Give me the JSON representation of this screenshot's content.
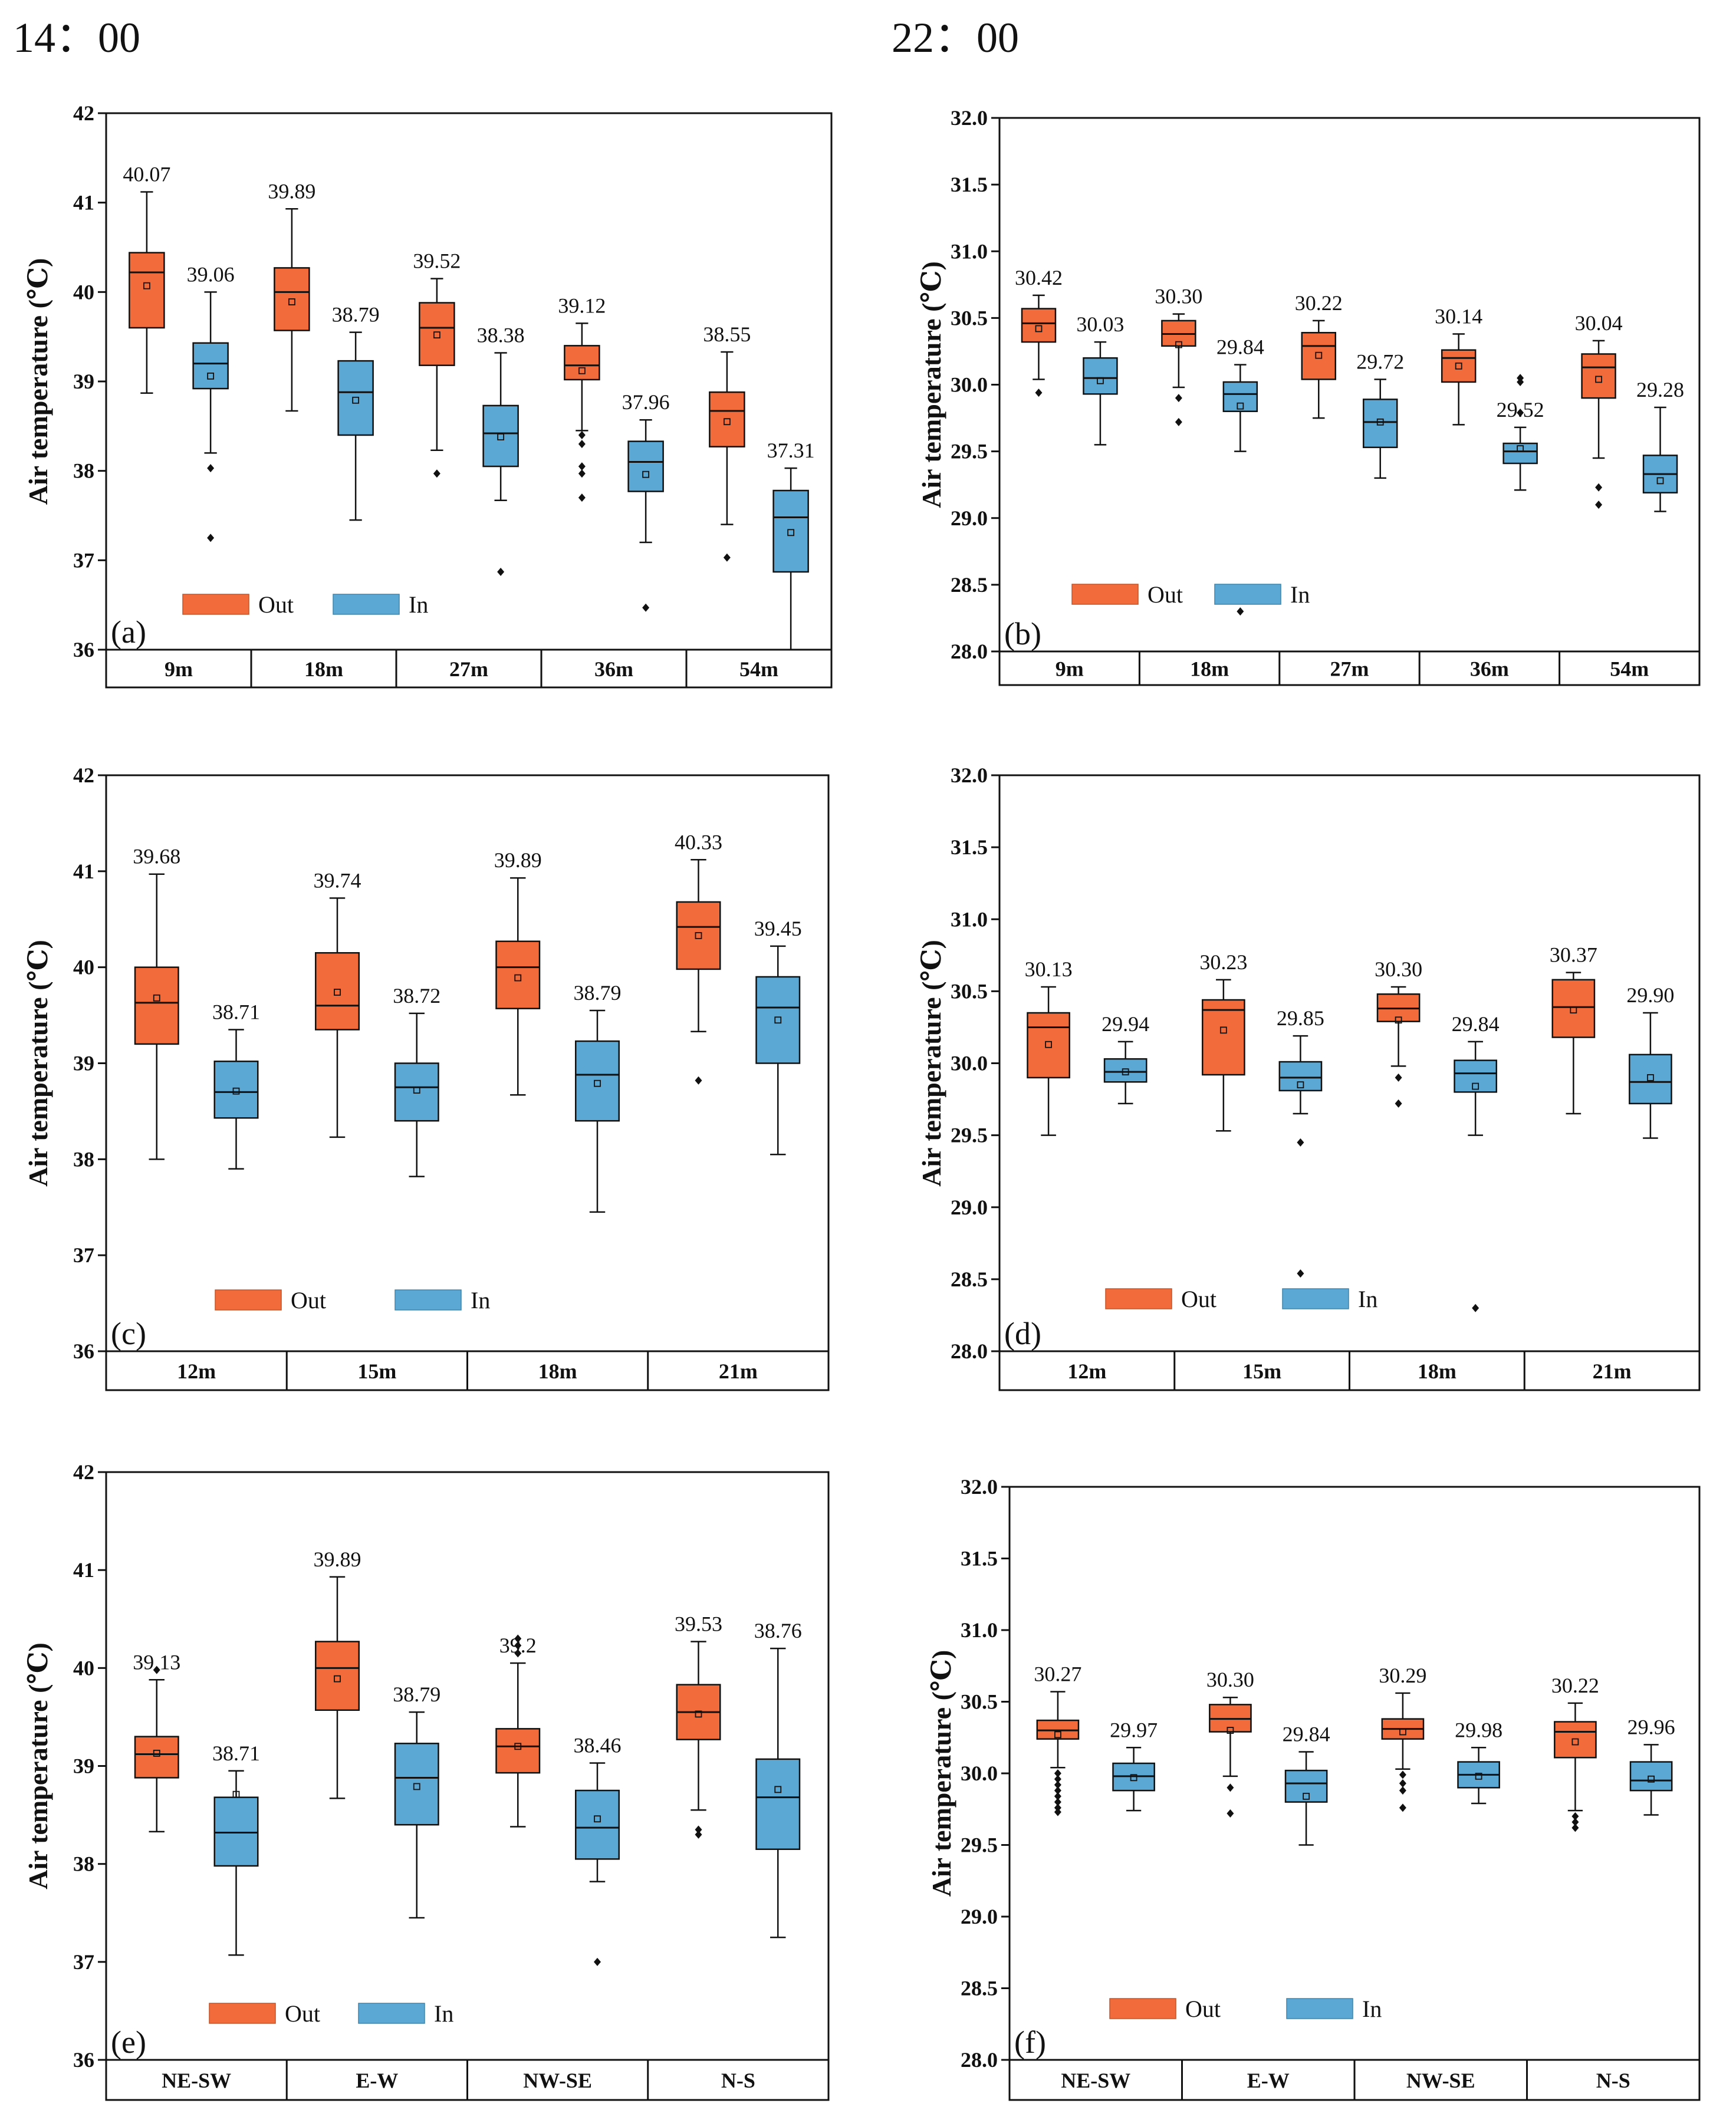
{
  "headers": {
    "left": "14：00",
    "right": "22：00"
  },
  "legend": {
    "out": "Out",
    "in": "In"
  },
  "colors": {
    "out": "#f26b3a",
    "in": "#5ba8d4",
    "axis": "#111111"
  },
  "chart_data": [
    {
      "panel": "(a)",
      "type": "box",
      "ylabel": "Air temperature (℃)",
      "ylim": [
        36,
        42
      ],
      "yticks": [
        "36",
        "37",
        "38",
        "39",
        "40",
        "41",
        "42"
      ],
      "categories": [
        "9m",
        "18m",
        "27m",
        "36m",
        "54m"
      ],
      "series": [
        {
          "name": "Out",
          "boxes": [
            {
              "mean": 40.07,
              "label": "40.07",
              "q1": 39.6,
              "median": 40.22,
              "q3": 40.44,
              "wl": 38.87,
              "wh": 41.12,
              "outliers": []
            },
            {
              "mean": 39.89,
              "label": "39.89",
              "q1": 39.57,
              "median": 40.0,
              "q3": 40.27,
              "wl": 38.67,
              "wh": 40.93,
              "outliers": []
            },
            {
              "mean": 39.52,
              "label": "39.52",
              "q1": 39.18,
              "median": 39.6,
              "q3": 39.88,
              "wl": 38.23,
              "wh": 40.15,
              "outliers": [
                37.97
              ]
            },
            {
              "mean": 39.12,
              "label": "39.12",
              "q1": 39.02,
              "median": 39.18,
              "q3": 39.4,
              "wl": 38.45,
              "wh": 39.65,
              "outliers": [
                38.4,
                38.3,
                38.05,
                37.97,
                37.7
              ]
            },
            {
              "mean": 38.55,
              "label": "38.55",
              "q1": 38.27,
              "median": 38.67,
              "q3": 38.88,
              "wl": 37.4,
              "wh": 39.33,
              "outliers": [
                37.03
              ]
            }
          ]
        },
        {
          "name": "In",
          "boxes": [
            {
              "mean": 39.06,
              "label": "39.06",
              "q1": 38.92,
              "median": 39.2,
              "q3": 39.43,
              "wl": 38.2,
              "wh": 40.0,
              "outliers": [
                38.03,
                37.25
              ]
            },
            {
              "mean": 38.79,
              "label": "38.79",
              "q1": 38.4,
              "median": 38.88,
              "q3": 39.23,
              "wl": 37.45,
              "wh": 39.55,
              "outliers": []
            },
            {
              "mean": 38.38,
              "label": "38.38",
              "q1": 38.05,
              "median": 38.42,
              "q3": 38.73,
              "wl": 37.67,
              "wh": 39.32,
              "outliers": [
                36.87
              ]
            },
            {
              "mean": 37.96,
              "label": "37.96",
              "q1": 37.77,
              "median": 38.1,
              "q3": 38.33,
              "wl": 37.2,
              "wh": 38.57,
              "outliers": [
                36.47
              ]
            },
            {
              "mean": 37.31,
              "label": "37.31",
              "q1": 36.87,
              "median": 37.48,
              "q3": 37.78,
              "wl": 36.0,
              "wh": 38.03,
              "outliers": []
            }
          ]
        }
      ]
    },
    {
      "panel": "(b)",
      "type": "box",
      "ylabel": "Air temperature (℃)",
      "ylim": [
        28,
        32
      ],
      "yticks": [
        "28.0",
        "28.5",
        "29.0",
        "29.5",
        "30.0",
        "30.5",
        "31.0",
        "31.5",
        "32.0"
      ],
      "categories": [
        "9m",
        "18m",
        "27m",
        "36m",
        "54m"
      ],
      "series": [
        {
          "name": "Out",
          "boxes": [
            {
              "mean": 30.42,
              "label": "30.42",
              "q1": 30.32,
              "median": 30.46,
              "q3": 30.57,
              "wl": 30.04,
              "wh": 30.67,
              "outliers": [
                29.94
              ]
            },
            {
              "mean": 30.3,
              "label": "30.30",
              "q1": 30.29,
              "median": 30.38,
              "q3": 30.48,
              "wl": 29.98,
              "wh": 30.53,
              "outliers": [
                29.9,
                29.72
              ]
            },
            {
              "mean": 30.22,
              "label": "30.22",
              "q1": 30.04,
              "median": 30.29,
              "q3": 30.39,
              "wl": 29.75,
              "wh": 30.48,
              "outliers": []
            },
            {
              "mean": 30.14,
              "label": "30.14",
              "q1": 30.02,
              "median": 30.2,
              "q3": 30.26,
              "wl": 29.7,
              "wh": 30.38,
              "outliers": []
            },
            {
              "mean": 30.04,
              "label": "30.04",
              "q1": 29.9,
              "median": 30.13,
              "q3": 30.23,
              "wl": 29.45,
              "wh": 30.33,
              "outliers": [
                29.23,
                29.1
              ]
            }
          ]
        },
        {
          "name": "In",
          "boxes": [
            {
              "mean": 30.03,
              "label": "30.03",
              "q1": 29.93,
              "median": 30.05,
              "q3": 30.2,
              "wl": 29.55,
              "wh": 30.32,
              "outliers": []
            },
            {
              "mean": 29.84,
              "label": "29.84",
              "q1": 29.8,
              "median": 29.93,
              "q3": 30.02,
              "wl": 29.5,
              "wh": 30.15,
              "outliers": [
                28.3
              ]
            },
            {
              "mean": 29.72,
              "label": "29.72",
              "q1": 29.53,
              "median": 29.72,
              "q3": 29.89,
              "wl": 29.3,
              "wh": 30.04,
              "outliers": []
            },
            {
              "mean": 29.52,
              "label": "29.52",
              "q1": 29.41,
              "median": 29.5,
              "q3": 29.56,
              "wl": 29.21,
              "wh": 29.68,
              "outliers": [
                30.05,
                30.02,
                29.79
              ]
            },
            {
              "mean": 29.28,
              "label": "29.28",
              "q1": 29.19,
              "median": 29.33,
              "q3": 29.47,
              "wl": 29.05,
              "wh": 29.83,
              "outliers": []
            }
          ]
        }
      ]
    },
    {
      "panel": "(c)",
      "type": "box",
      "ylabel": "Air temperature  (℃)",
      "ylim": [
        36,
        42
      ],
      "yticks": [
        "36",
        "37",
        "38",
        "39",
        "40",
        "41",
        "42"
      ],
      "categories": [
        "12m",
        "15m",
        "18m",
        "21m"
      ],
      "series": [
        {
          "name": "Out",
          "boxes": [
            {
              "mean": 39.68,
              "label": "39.68",
              "q1": 39.2,
              "median": 39.63,
              "q3": 40.0,
              "wl": 38.0,
              "wh": 40.97,
              "outliers": []
            },
            {
              "mean": 39.74,
              "label": "39.74",
              "q1": 39.35,
              "median": 39.6,
              "q3": 40.15,
              "wl": 38.23,
              "wh": 40.72,
              "outliers": []
            },
            {
              "mean": 39.89,
              "label": "39.89",
              "q1": 39.57,
              "median": 40.0,
              "q3": 40.27,
              "wl": 38.67,
              "wh": 40.93,
              "outliers": []
            },
            {
              "mean": 40.33,
              "label": "40.33",
              "q1": 39.98,
              "median": 40.42,
              "q3": 40.68,
              "wl": 39.33,
              "wh": 41.12,
              "outliers": [
                38.82
              ]
            }
          ]
        },
        {
          "name": "In",
          "boxes": [
            {
              "mean": 38.71,
              "label": "38.71",
              "q1": 38.43,
              "median": 38.7,
              "q3": 39.02,
              "wl": 37.9,
              "wh": 39.35,
              "outliers": []
            },
            {
              "mean": 38.72,
              "label": "38.72",
              "q1": 38.4,
              "median": 38.75,
              "q3": 39.0,
              "wl": 37.82,
              "wh": 39.52,
              "outliers": []
            },
            {
              "mean": 38.79,
              "label": "38.79",
              "q1": 38.4,
              "median": 38.88,
              "q3": 39.23,
              "wl": 37.45,
              "wh": 39.55,
              "outliers": []
            },
            {
              "mean": 39.45,
              "label": "39.45",
              "q1": 39.0,
              "median": 39.58,
              "q3": 39.9,
              "wl": 38.05,
              "wh": 40.22,
              "outliers": []
            }
          ]
        }
      ]
    },
    {
      "panel": "(d)",
      "type": "box",
      "ylabel": "Air temperature (℃)",
      "ylim": [
        28,
        32
      ],
      "yticks": [
        "28.0",
        "28.5",
        "29.0",
        "29.5",
        "30.0",
        "30.5",
        "31.0",
        "31.5",
        "32.0"
      ],
      "categories": [
        "12m",
        "15m",
        "18m",
        "21m"
      ],
      "series": [
        {
          "name": "Out",
          "boxes": [
            {
              "mean": 30.13,
              "label": "30.13",
              "q1": 29.9,
              "median": 30.25,
              "q3": 30.35,
              "wl": 29.5,
              "wh": 30.53,
              "outliers": []
            },
            {
              "mean": 30.23,
              "label": "30.23",
              "q1": 29.92,
              "median": 30.37,
              "q3": 30.44,
              "wl": 29.53,
              "wh": 30.58,
              "outliers": []
            },
            {
              "mean": 30.3,
              "label": "30.30",
              "q1": 30.29,
              "median": 30.38,
              "q3": 30.48,
              "wl": 29.98,
              "wh": 30.53,
              "outliers": [
                29.9,
                29.72
              ]
            },
            {
              "mean": 30.37,
              "label": "30.37",
              "q1": 30.18,
              "median": 30.39,
              "q3": 30.58,
              "wl": 29.65,
              "wh": 30.63,
              "outliers": []
            }
          ]
        },
        {
          "name": "In",
          "boxes": [
            {
              "mean": 29.94,
              "label": "29.94",
              "q1": 29.87,
              "median": 29.94,
              "q3": 30.03,
              "wl": 29.72,
              "wh": 30.15,
              "outliers": []
            },
            {
              "mean": 29.85,
              "label": "29.85",
              "q1": 29.81,
              "median": 29.9,
              "q3": 30.01,
              "wl": 29.65,
              "wh": 30.19,
              "outliers": [
                29.45,
                28.54
              ]
            },
            {
              "mean": 29.84,
              "label": "29.84",
              "q1": 29.8,
              "median": 29.93,
              "q3": 30.02,
              "wl": 29.5,
              "wh": 30.15,
              "outliers": [
                28.3
              ]
            },
            {
              "mean": 29.9,
              "label": "29.90",
              "q1": 29.72,
              "median": 29.87,
              "q3": 30.06,
              "wl": 29.48,
              "wh": 30.35,
              "outliers": []
            }
          ]
        }
      ]
    },
    {
      "panel": "(e)",
      "type": "box",
      "ylabel": "Air temperature  (℃)",
      "ylim": [
        36,
        42
      ],
      "yticks": [
        "36",
        "37",
        "38",
        "39",
        "40",
        "41",
        "42"
      ],
      "categories": [
        "NE-SW",
        "E-W",
        "NW-SE",
        "N-S"
      ],
      "series": [
        {
          "name": "Out",
          "boxes": [
            {
              "mean": 39.13,
              "label": "39.13",
              "q1": 38.88,
              "median": 39.12,
              "q3": 39.3,
              "wl": 38.33,
              "wh": 39.88,
              "outliers": [
                39.98
              ]
            },
            {
              "mean": 39.89,
              "label": "39.89",
              "q1": 39.57,
              "median": 40.0,
              "q3": 40.27,
              "wl": 38.67,
              "wh": 40.93,
              "outliers": []
            },
            {
              "mean": 39.2,
              "label": "39.2",
              "q1": 38.93,
              "median": 39.2,
              "q3": 39.38,
              "wl": 38.38,
              "wh": 40.05,
              "outliers": [
                40.3,
                40.23,
                40.15
              ]
            },
            {
              "mean": 39.53,
              "label": "39.53",
              "q1": 39.27,
              "median": 39.55,
              "q3": 39.83,
              "wl": 38.55,
              "wh": 40.27,
              "outliers": [
                38.35,
                38.3
              ]
            }
          ]
        },
        {
          "name": "In",
          "boxes": [
            {
              "mean": 38.71,
              "label": "38.71",
              "q1": 37.98,
              "median": 38.32,
              "q3": 38.68,
              "wl": 37.07,
              "wh": 38.95,
              "outliers": []
            },
            {
              "mean": 38.79,
              "label": "38.79",
              "q1": 38.4,
              "median": 38.88,
              "q3": 39.23,
              "wl": 37.45,
              "wh": 39.55,
              "outliers": []
            },
            {
              "mean": 38.46,
              "label": "38.46",
              "q1": 38.05,
              "median": 38.37,
              "q3": 38.75,
              "wl": 37.82,
              "wh": 39.03,
              "outliers": [
                37.0
              ]
            },
            {
              "mean": 38.76,
              "label": "38.76",
              "q1": 38.15,
              "median": 38.68,
              "q3": 39.07,
              "wl": 37.25,
              "wh": 40.2,
              "outliers": []
            }
          ]
        }
      ]
    },
    {
      "panel": "(f)",
      "type": "box",
      "ylabel": "Air temperature  (℃)",
      "ylim": [
        28,
        32
      ],
      "yticks": [
        "28.0",
        "28.5",
        "29.0",
        "29.5",
        "30.0",
        "30.5",
        "31.0",
        "31.5",
        "32.0"
      ],
      "categories": [
        "NE-SW",
        "E-W",
        "NW-SE",
        "N-S"
      ],
      "series": [
        {
          "name": "Out",
          "boxes": [
            {
              "mean": 30.27,
              "label": "30.27",
              "q1": 30.24,
              "median": 30.3,
              "q3": 30.37,
              "wl": 30.04,
              "wh": 30.57,
              "outliers": [
                30.0,
                29.96,
                29.92,
                29.88,
                29.84,
                29.8,
                29.76,
                29.73
              ]
            },
            {
              "mean": 30.3,
              "label": "30.30",
              "q1": 30.29,
              "median": 30.38,
              "q3": 30.48,
              "wl": 29.98,
              "wh": 30.53,
              "outliers": [
                29.9,
                29.72
              ]
            },
            {
              "mean": 30.29,
              "label": "30.29",
              "q1": 30.24,
              "median": 30.31,
              "q3": 30.38,
              "wl": 30.03,
              "wh": 30.56,
              "outliers": [
                29.99,
                29.93,
                29.88,
                29.76
              ]
            },
            {
              "mean": 30.22,
              "label": "30.22",
              "q1": 30.11,
              "median": 30.29,
              "q3": 30.36,
              "wl": 29.74,
              "wh": 30.49,
              "outliers": [
                29.7,
                29.66,
                29.62
              ]
            }
          ]
        },
        {
          "name": "In",
          "boxes": [
            {
              "mean": 29.97,
              "label": "29.97",
              "q1": 29.88,
              "median": 29.98,
              "q3": 30.07,
              "wl": 29.74,
              "wh": 30.18,
              "outliers": []
            },
            {
              "mean": 29.84,
              "label": "29.84",
              "q1": 29.8,
              "median": 29.93,
              "q3": 30.02,
              "wl": 29.5,
              "wh": 30.15,
              "outliers": []
            },
            {
              "mean": 29.98,
              "label": "29.98",
              "q1": 29.9,
              "median": 29.99,
              "q3": 30.08,
              "wl": 29.79,
              "wh": 30.18,
              "outliers": []
            },
            {
              "mean": 29.96,
              "label": "29.96",
              "q1": 29.88,
              "median": 29.95,
              "q3": 30.08,
              "wl": 29.71,
              "wh": 30.2,
              "outliers": []
            }
          ]
        }
      ]
    }
  ]
}
